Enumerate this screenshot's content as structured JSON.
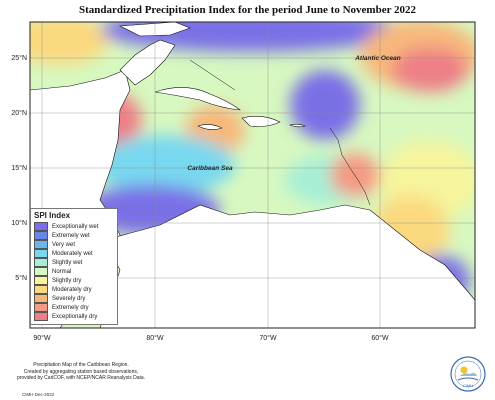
{
  "title": "Standardized Precipitation Index for the period June to November 2022",
  "labels": {
    "ocean": "Atlantic Ocean",
    "sea": "Caribbean Sea"
  },
  "lat_ticks": [
    "25°N",
    "20°N",
    "15°N",
    "10°N",
    "5°N"
  ],
  "lon_ticks": [
    "90°W",
    "80°W",
    "70°W",
    "60°W"
  ],
  "legend": {
    "title": "SPI Index",
    "items": [
      {
        "label": "Exceptionally wet",
        "color": "#7a6fe6"
      },
      {
        "label": "Extremely wet",
        "color": "#6a86ea"
      },
      {
        "label": "Very wet",
        "color": "#66b7f0"
      },
      {
        "label": "Moderately wet",
        "color": "#78d8ef"
      },
      {
        "label": "Slightly wet",
        "color": "#a6efd6"
      },
      {
        "label": "Normal",
        "color": "#d7f8c0"
      },
      {
        "label": "Slightly dry",
        "color": "#f6f59d"
      },
      {
        "label": "Moderately dry",
        "color": "#fbd97f"
      },
      {
        "label": "Severely dry",
        "color": "#f8b77a"
      },
      {
        "label": "Extremely dry",
        "color": "#f59a84"
      },
      {
        "label": "Exceptionally dry",
        "color": "#ee7f86"
      }
    ]
  },
  "footer": {
    "lines": [
      "Precipitation Map of the Caribbean Region.",
      "Created by aggregating station based observations,",
      "provided by CariCOF, with NCEP/NCAR Reanalysis Data."
    ],
    "date": "CIMH Dec-2022"
  },
  "logo_text": "CIMH"
}
